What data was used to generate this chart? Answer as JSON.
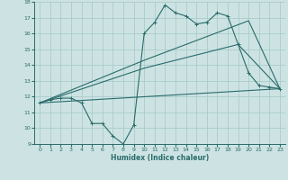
{
  "title": "",
  "xlabel": "Humidex (Indice chaleur)",
  "xlim": [
    -0.5,
    23.5
  ],
  "ylim": [
    9,
    18
  ],
  "xticks": [
    0,
    1,
    2,
    3,
    4,
    5,
    6,
    7,
    8,
    9,
    10,
    11,
    12,
    13,
    14,
    15,
    16,
    17,
    18,
    19,
    20,
    21,
    22,
    23
  ],
  "yticks": [
    9,
    10,
    11,
    12,
    13,
    14,
    15,
    16,
    17,
    18
  ],
  "background_color": "#cde3e3",
  "grid_color": "#aacccc",
  "line_color": "#2a6b6b",
  "line1_x": [
    0,
    1,
    2,
    3,
    4,
    5,
    6,
    7,
    8,
    9,
    10,
    11,
    12,
    13,
    14,
    15,
    16,
    17,
    18,
    19,
    20,
    21,
    22,
    23
  ],
  "line1_y": [
    11.6,
    11.8,
    11.9,
    11.9,
    11.6,
    10.3,
    10.3,
    9.5,
    9.0,
    10.2,
    16.0,
    16.7,
    17.8,
    17.3,
    17.1,
    16.6,
    16.7,
    17.3,
    17.1,
    15.3,
    13.5,
    12.7,
    12.6,
    12.5
  ],
  "line2_x": [
    0,
    23
  ],
  "line2_y": [
    11.6,
    12.5
  ],
  "line3_x": [
    0,
    10,
    19,
    23
  ],
  "line3_y": [
    11.6,
    13.8,
    15.3,
    12.5
  ],
  "line4_x": [
    0,
    10,
    20,
    23
  ],
  "line4_y": [
    11.6,
    14.3,
    16.8,
    12.5
  ]
}
